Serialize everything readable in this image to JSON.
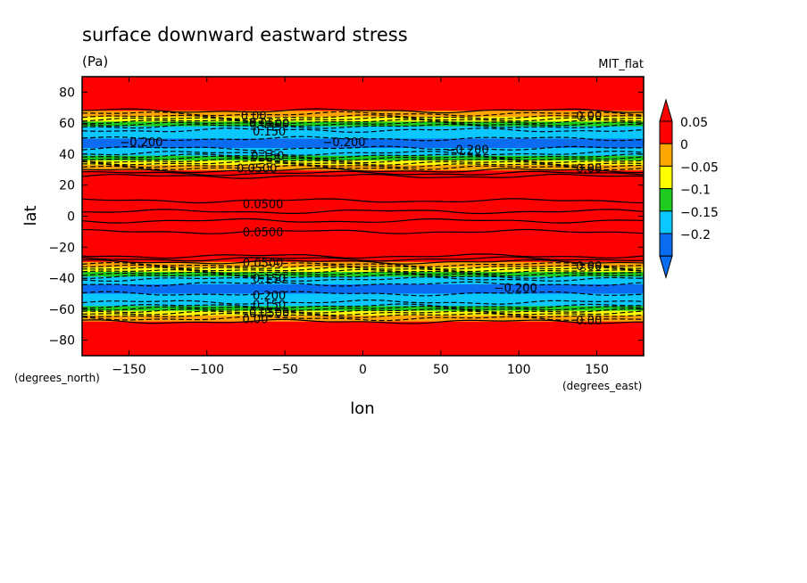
{
  "chart_data": {
    "type": "heatmap",
    "title": "surface downward eastward stress",
    "units": "(Pa)",
    "dataset_label": "MIT_flat",
    "xlabel": "lon",
    "ylabel": "lat",
    "x_units": "(degrees_east)",
    "y_units": "(degrees_north)",
    "xlim": [
      -180,
      180
    ],
    "ylim": [
      -90,
      90
    ],
    "x_ticks": [
      -150,
      -100,
      -50,
      0,
      50,
      100,
      150
    ],
    "y_ticks": [
      -80,
      -60,
      -40,
      -20,
      0,
      20,
      40,
      60,
      80
    ],
    "x_tick_labels": [
      "−150",
      "−100",
      "−50",
      "0",
      "50",
      "100",
      "150"
    ],
    "y_tick_labels": [
      "−80",
      "−60",
      "−40",
      "−20",
      "0",
      "20",
      "40",
      "60",
      "80"
    ],
    "colorbar": {
      "levels": [
        -0.2,
        -0.15,
        -0.1,
        -0.05,
        0,
        0.05
      ],
      "labels": [
        "−0.2",
        "−0.15",
        "−0.1",
        "−0.05",
        "0",
        "0.05"
      ],
      "colors": [
        "#0a6cf0",
        "#0ac8ff",
        "#1ecc1e",
        "#ffff00",
        "#ffa500",
        "#ff0000"
      ],
      "extend": "both",
      "below_color": "#0a6cf0",
      "above_color": "#ff0000"
    },
    "zonal_profile": {
      "lat": [
        -90,
        -80,
        -68,
        -64,
        -61,
        -58,
        -55,
        -50,
        -45,
        -40,
        -37,
        -34,
        -31,
        -28,
        -25,
        -20,
        -12,
        -6,
        0,
        6,
        12,
        20,
        25,
        28,
        31,
        34,
        37,
        40,
        45,
        50,
        55,
        58,
        61,
        64,
        68,
        80,
        90
      ],
      "value": [
        0.02,
        0.02,
        0.0,
        -0.05,
        -0.1,
        -0.15,
        -0.18,
        -0.2,
        -0.21,
        -0.17,
        -0.12,
        -0.07,
        -0.02,
        0.02,
        0.06,
        0.07,
        0.06,
        0.03,
        0.02,
        0.03,
        0.06,
        0.07,
        0.06,
        0.02,
        -0.02,
        -0.07,
        -0.12,
        -0.17,
        -0.21,
        -0.2,
        -0.18,
        -0.15,
        -0.1,
        -0.05,
        0.0,
        0.02,
        0.02
      ]
    },
    "contour_labels": [
      {
        "text": "0.00",
        "lon": -70,
        "lat": 65
      },
      {
        "text": "0.0500",
        "lon": -60,
        "lat": 60
      },
      {
        "text": "0.150",
        "lon": -60,
        "lat": 55
      },
      {
        "text": "−0.200",
        "lon": -142,
        "lat": 48
      },
      {
        "text": "−0.200",
        "lon": -12,
        "lat": 48
      },
      {
        "text": "−0.200",
        "lon": 67,
        "lat": 43
      },
      {
        "text": "0.00",
        "lon": 145,
        "lat": 65
      },
      {
        "text": "0.150",
        "lon": -61,
        "lat": 39
      },
      {
        "text": "0.0500",
        "lon": -68,
        "lat": 31
      },
      {
        "text": "0.00",
        "lon": 145,
        "lat": 31
      },
      {
        "text": "0.0500",
        "lon": -64,
        "lat": 8
      },
      {
        "text": "0.0500",
        "lon": -64,
        "lat": -10
      },
      {
        "text": "0.0500",
        "lon": -64,
        "lat": -30
      },
      {
        "text": "0.150",
        "lon": -60,
        "lat": -40
      },
      {
        "text": "0.00",
        "lon": 145,
        "lat": -32
      },
      {
        "text": "−0.200",
        "lon": 98,
        "lat": -46
      },
      {
        "text": "0.200",
        "lon": -60,
        "lat": -51
      },
      {
        "text": "0.150",
        "lon": -60,
        "lat": -57
      },
      {
        "text": "0.0500",
        "lon": -60,
        "lat": -62
      },
      {
        "text": "0.00",
        "lon": -69,
        "lat": -66
      },
      {
        "text": "0.00",
        "lon": 145,
        "lat": -67
      }
    ]
  }
}
